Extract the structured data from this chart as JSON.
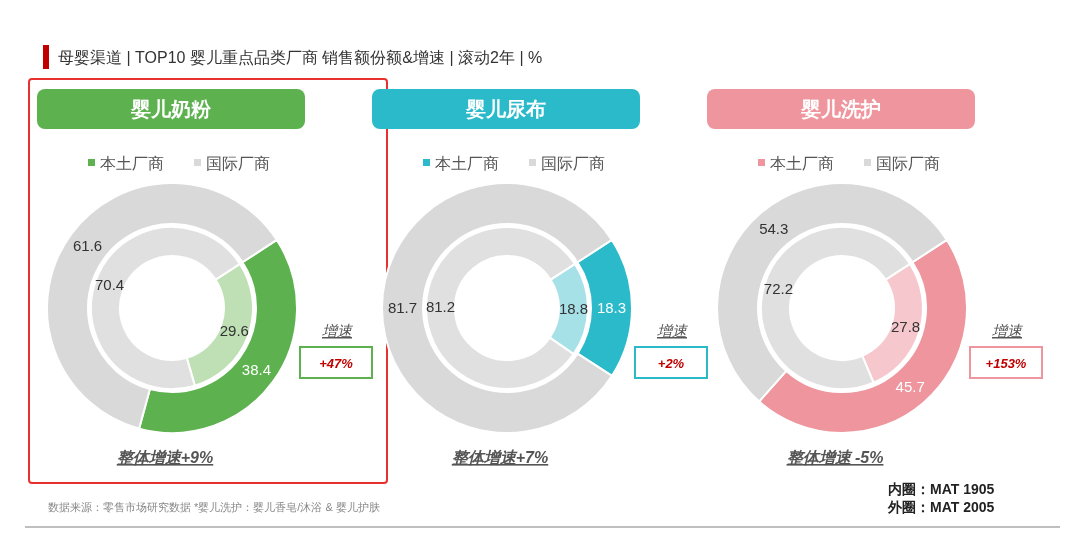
{
  "chart_data": [
    {
      "type": "donut",
      "title": "婴儿奶粉",
      "categories": [
        "本土厂商",
        "国际厂商"
      ],
      "legend": "top",
      "data_labels": true,
      "series": [
        {
          "values": [
            29.6,
            70.4
          ],
          "colors": [
            "#bfe0b4",
            "#e0e0e0"
          ]
        },
        {
          "values": [
            38.4,
            61.6
          ],
          "colors": [
            "#5db24f",
            "#d9d9d9"
          ]
        }
      ],
      "annotations": [
        "增速",
        "+47%",
        "整体增速+9%",
        "母婴渠道 | TOP10 婴儿重点品类厂商 销售额份额&增速 | 滚动2年 | %",
        "数据来源：零售市场研究数据 *婴儿洗护：婴儿香皂/沐浴 & 婴儿护肤"
      ]
    },
    {
      "type": "donut",
      "title": "婴儿尿布",
      "categories": [
        "本土厂商",
        "国际厂商"
      ],
      "legend": "top",
      "data_labels": true,
      "series": [
        {
          "values": [
            18.8,
            81.2
          ],
          "colors": [
            "#a7e1e8",
            "#e0e0e0"
          ]
        },
        {
          "values": [
            18.3,
            81.7
          ],
          "colors": [
            "#2bbac9",
            "#d9d9d9"
          ]
        }
      ],
      "annotations": [
        "增速",
        "+2%",
        "整体增速+7%"
      ]
    },
    {
      "type": "donut",
      "title": "婴儿洗护",
      "categories": [
        "本土厂商",
        "国际厂商"
      ],
      "legend": "top",
      "data_labels": true,
      "series": [
        {
          "values": [
            27.8,
            72.2
          ],
          "colors": [
            "#f6c8cd",
            "#e0e0e0"
          ]
        },
        {
          "values": [
            45.7,
            54.3
          ],
          "colors": [
            "#ee959e",
            "#d9d9d9"
          ]
        }
      ],
      "annotations": [
        "增速",
        "+153%",
        "整体增速 -5%",
        "内圈：MAT 1905",
        "外圈：MAT 2005"
      ]
    }
  ]
}
